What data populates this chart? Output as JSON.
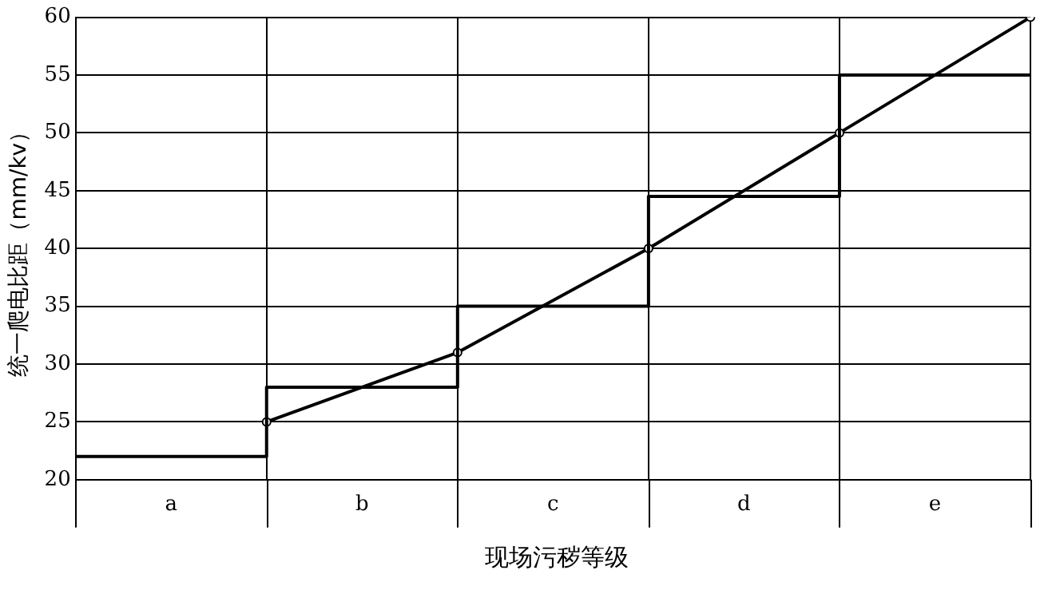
{
  "chart_data": {
    "type": "step",
    "xlabel": "现场污秽等级",
    "ylabel": "统一爬电比距（mm/kv）",
    "categories": [
      null,
      "a",
      null,
      "b",
      null,
      "c",
      null,
      "d",
      null,
      "e",
      null
    ],
    "series": [
      {
        "type": "step",
        "color": "#000000",
        "values": [
          22,
          null,
          28,
          null,
          35,
          null,
          44.5,
          null,
          55,
          null,
          55
        ]
      },
      {
        "type": "line",
        "color": "#000000",
        "values": [
          null,
          null,
          25,
          null,
          31,
          null,
          40,
          null,
          50,
          null,
          60
        ],
        "marker": "circle"
      }
    ],
    "ylim": [
      20,
      60
    ],
    "yticks": [
      20,
      25,
      30,
      35,
      40,
      45,
      50,
      55,
      60
    ],
    "grid": true,
    "legend": false
  }
}
